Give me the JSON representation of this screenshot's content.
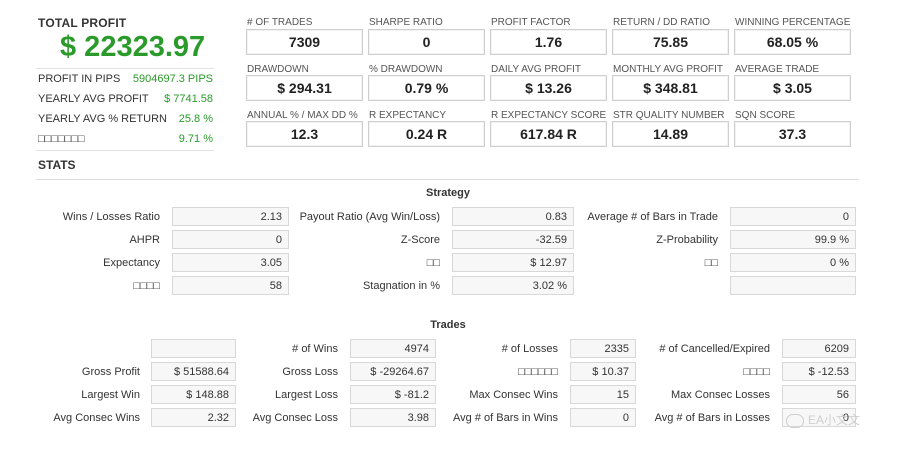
{
  "profit_panel": {
    "title": "TOTAL PROFIT",
    "value": "$ 22323.97",
    "rows": [
      {
        "label": "PROFIT IN PIPS",
        "value": "5904697.3 PIPS"
      },
      {
        "label": "YEARLY AVG PROFIT",
        "value": "$ 7741.58"
      },
      {
        "label": "YEARLY AVG % RETURN",
        "value": "25.8 %"
      },
      {
        "label": "□□□□□□□",
        "value": "9.71 %"
      }
    ]
  },
  "metrics": [
    {
      "label": "# OF TRADES",
      "value": "7309"
    },
    {
      "label": "SHARPE RATIO",
      "value": "0"
    },
    {
      "label": "PROFIT FACTOR",
      "value": "1.76"
    },
    {
      "label": "RETURN / DD RATIO",
      "value": "75.85"
    },
    {
      "label": "WINNING PERCENTAGE",
      "value": "68.05 %"
    },
    {
      "label": "DRAWDOWN",
      "value": "$ 294.31"
    },
    {
      "label": "% DRAWDOWN",
      "value": "0.79 %"
    },
    {
      "label": "DAILY AVG PROFIT",
      "value": "$ 13.26"
    },
    {
      "label": "MONTHLY AVG PROFIT",
      "value": "$ 348.81"
    },
    {
      "label": "AVERAGE TRADE",
      "value": "$ 3.05"
    },
    {
      "label": "ANNUAL % / MAX DD %",
      "value": "12.3"
    },
    {
      "label": "R EXPECTANCY",
      "value": "0.24 R"
    },
    {
      "label": "R EXPECTANCY SCORE",
      "value": "617.84 R"
    },
    {
      "label": "STR QUALITY NUMBER",
      "value": "14.89"
    },
    {
      "label": "SQN SCORE",
      "value": "37.3"
    }
  ],
  "stats_title": "STATS",
  "strategy": {
    "title": "Strategy",
    "rows": [
      [
        {
          "label": "Wins / Losses Ratio",
          "value": "2.13"
        },
        {
          "label": "Payout Ratio (Avg Win/Loss)",
          "value": "0.83"
        },
        {
          "label": "Average # of Bars in Trade",
          "value": "0"
        }
      ],
      [
        {
          "label": "AHPR",
          "value": "0"
        },
        {
          "label": "Z-Score",
          "value": "-32.59"
        },
        {
          "label": "Z-Probability",
          "value": "99.9 %"
        }
      ],
      [
        {
          "label": "Expectancy",
          "value": "3.05"
        },
        {
          "label": "□□",
          "value": "$ 12.97"
        },
        {
          "label": "□□",
          "value": "0 %"
        }
      ],
      [
        {
          "label": "□□□□",
          "value": "58"
        },
        {
          "label": "Stagnation in %",
          "value": "3.02 %"
        },
        {
          "label": "",
          "value": ""
        }
      ]
    ]
  },
  "trades": {
    "title": "Trades",
    "rows": [
      [
        {
          "label": "",
          "value": ""
        },
        {
          "label": "# of Wins",
          "value": "4974"
        },
        {
          "label": "# of Losses",
          "value": "2335"
        },
        {
          "label": "# of Cancelled/Expired",
          "value": "6209"
        }
      ],
      [
        {
          "label": "Gross Profit",
          "value": "$ 51588.64"
        },
        {
          "label": "Gross Loss",
          "value": "$ -29264.67"
        },
        {
          "label": "□□□□□□",
          "value": "$ 10.37"
        },
        {
          "label": "□□□□",
          "value": "$ -12.53"
        }
      ],
      [
        {
          "label": "Largest Win",
          "value": "$ 148.88"
        },
        {
          "label": "Largest Loss",
          "value": "$ -81.2"
        },
        {
          "label": "Max Consec Wins",
          "value": "15"
        },
        {
          "label": "Max Consec Losses",
          "value": "56"
        }
      ],
      [
        {
          "label": "Avg Consec Wins",
          "value": "2.32"
        },
        {
          "label": "Avg Consec Loss",
          "value": "3.98"
        },
        {
          "label": "Avg # of Bars in Wins",
          "value": "0"
        },
        {
          "label": "Avg # of Bars in Losses",
          "value": "0"
        }
      ]
    ]
  },
  "watermark": "EA小文文",
  "colors": {
    "profit_green": "#2a9a2a",
    "border": "#cfcfcf",
    "cell_bg": "#f7f7f7"
  }
}
